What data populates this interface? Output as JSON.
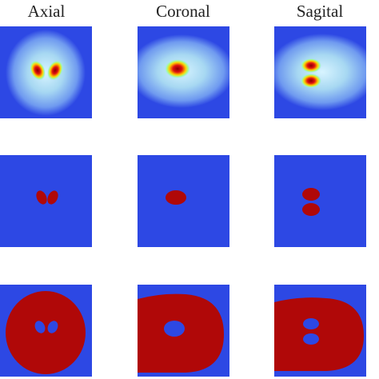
{
  "columns": {
    "0": {
      "title": "Axial"
    },
    "1": {
      "title": "Coronal"
    },
    "2": {
      "title": "Sagital"
    }
  }
}
